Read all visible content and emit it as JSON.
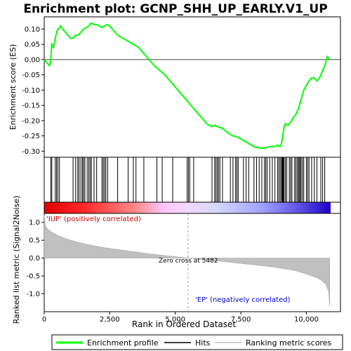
{
  "chart_data": {
    "type": "line",
    "title": "Enrichment plot: GCNP_SHH_UP_EARLY.V1_UP",
    "panels": {
      "enrichment": {
        "ylabel": "Enrichment score (ES)",
        "ylim": [
          -0.32,
          0.14
        ],
        "yticks": [
          "0.10",
          "0.05",
          "0.00",
          "-0.05",
          "-0.10",
          "-0.15",
          "-0.20",
          "-0.25",
          "-0.30"
        ],
        "ytick_values": [
          0.1,
          0.05,
          0.0,
          -0.05,
          -0.1,
          -0.15,
          -0.2,
          -0.25,
          -0.3
        ],
        "series_name": "Enrichment profile",
        "color": "#00ff00",
        "x": [
          0,
          100,
          200,
          250,
          290,
          350,
          420,
          480,
          520,
          560,
          620,
          700,
          800,
          900,
          1000,
          1100,
          1200,
          1300,
          1400,
          1500,
          1600,
          1700,
          1800,
          1900,
          2000,
          2100,
          2200,
          2300,
          2400,
          2500,
          2600,
          2700,
          2800,
          2900,
          3000,
          3200,
          3400,
          3600,
          3800,
          4000,
          4200,
          4400,
          4600,
          4800,
          5000,
          5200,
          5400,
          5600,
          5800,
          6000,
          6200,
          6400,
          6500,
          6600,
          6800,
          7000,
          7200,
          7400,
          7600,
          7800,
          8000,
          8200,
          8400,
          8600,
          8800,
          8900,
          9000,
          9050,
          9100,
          9150,
          9200,
          9300,
          9400,
          9500,
          9600,
          9700,
          9800,
          9900,
          10000,
          10100,
          10200,
          10300,
          10400,
          10500,
          10600,
          10700,
          10800,
          10900
        ],
        "values": [
          0.0,
          -0.01,
          -0.02,
          0.0,
          0.05,
          0.04,
          0.07,
          0.09,
          0.1,
          0.1,
          0.11,
          0.1,
          0.09,
          0.08,
          0.07,
          0.07,
          0.08,
          0.08,
          0.09,
          0.1,
          0.105,
          0.11,
          0.12,
          0.115,
          0.115,
          0.11,
          0.105,
          0.11,
          0.115,
          0.11,
          0.1,
          0.09,
          0.08,
          0.075,
          0.07,
          0.06,
          0.05,
          0.04,
          0.02,
          0.0,
          -0.02,
          -0.035,
          -0.05,
          -0.07,
          -0.09,
          -0.11,
          -0.13,
          -0.15,
          -0.17,
          -0.19,
          -0.21,
          -0.22,
          -0.215,
          -0.22,
          -0.225,
          -0.24,
          -0.25,
          -0.255,
          -0.265,
          -0.275,
          -0.285,
          -0.29,
          -0.29,
          -0.285,
          -0.285,
          -0.28,
          -0.285,
          -0.275,
          -0.25,
          -0.22,
          -0.21,
          -0.215,
          -0.205,
          -0.19,
          -0.18,
          -0.16,
          -0.13,
          -0.1,
          -0.085,
          -0.07,
          -0.06,
          -0.06,
          -0.07,
          -0.06,
          -0.04,
          -0.02,
          0.01,
          0.0
        ]
      },
      "hits": {
        "positions": [
          250,
          290,
          420,
          470,
          520,
          580,
          1100,
          1200,
          1280,
          1330,
          1400,
          1460,
          1500,
          1550,
          1640,
          1700,
          1750,
          1800,
          1900,
          2000,
          2200,
          2250,
          2300,
          2350,
          2420,
          2800,
          3200,
          3400,
          3500,
          3800,
          4300,
          4500,
          4900,
          5450,
          5500,
          5550,
          5700,
          6400,
          6500,
          6550,
          6600,
          6650,
          6700,
          6800,
          7100,
          7200,
          7300,
          7350,
          7400,
          7600,
          7700,
          7800,
          8000,
          8100,
          8200,
          8300,
          8400,
          8450,
          8500,
          8600,
          8700,
          8800,
          8900,
          8950,
          9000,
          9050,
          9080,
          9100,
          9120,
          9150,
          9200,
          9250,
          9350,
          9400,
          9450,
          9550,
          9600,
          9650,
          9700,
          9720,
          9760,
          9800,
          9850,
          9900,
          10000,
          10050,
          10100,
          10200,
          10300,
          10400,
          10550,
          10620,
          10700
        ]
      },
      "ranked_metric": {
        "ylabel": "Ranked list metric (Signal2Noise)",
        "xlabel": "Rank in Ordered Dataset",
        "ylim": [
          -1.5,
          1.25
        ],
        "yticks": [
          "1.0",
          "0.5",
          "0.0",
          "-0.5",
          "-1.0"
        ],
        "ytick_values": [
          1.0,
          0.5,
          0.0,
          -0.5,
          -1.0
        ],
        "xlim": [
          0,
          11300
        ],
        "xticks": [
          "0",
          "2,500",
          "5,000",
          "7,500",
          "10,000"
        ],
        "xtick_values": [
          0,
          2500,
          5000,
          7500,
          10000
        ],
        "x": [
          0,
          50,
          150,
          300,
          500,
          800,
          1200,
          1600,
          2000,
          2500,
          3000,
          3500,
          4000,
          4500,
          5000,
          5482,
          6000,
          6500,
          7000,
          7500,
          8000,
          8500,
          9000,
          9500,
          9800,
          10100,
          10400,
          10600,
          10750,
          10850,
          10890
        ],
        "values": [
          1.2,
          0.9,
          0.8,
          0.72,
          0.64,
          0.55,
          0.46,
          0.39,
          0.33,
          0.27,
          0.22,
          0.17,
          0.12,
          0.08,
          0.04,
          0.0,
          -0.04,
          -0.07,
          -0.11,
          -0.15,
          -0.19,
          -0.23,
          -0.28,
          -0.34,
          -0.4,
          -0.47,
          -0.55,
          -0.64,
          -0.75,
          -0.95,
          -1.35
        ],
        "zero_cross_label": "Zero cross at 5482",
        "zero_cross": 5482,
        "left_label": "'IUP' (positively correlated)",
        "right_label": "'EP' (negatively correlated)"
      }
    },
    "legend": {
      "placement": "bottom",
      "items": [
        {
          "label": "Enrichment profile",
          "color": "#00ff00",
          "kind": "line"
        },
        {
          "label": "Hits",
          "color": "#000000",
          "kind": "line"
        },
        {
          "label": "Ranking metric scores",
          "color": "#c0c0c0",
          "kind": "line"
        }
      ]
    },
    "colors": {
      "profile": "#00ff00",
      "positive_label": "#cc0000",
      "negative_label": "#0000cc",
      "metric_fill": "#c0c0c0"
    }
  }
}
